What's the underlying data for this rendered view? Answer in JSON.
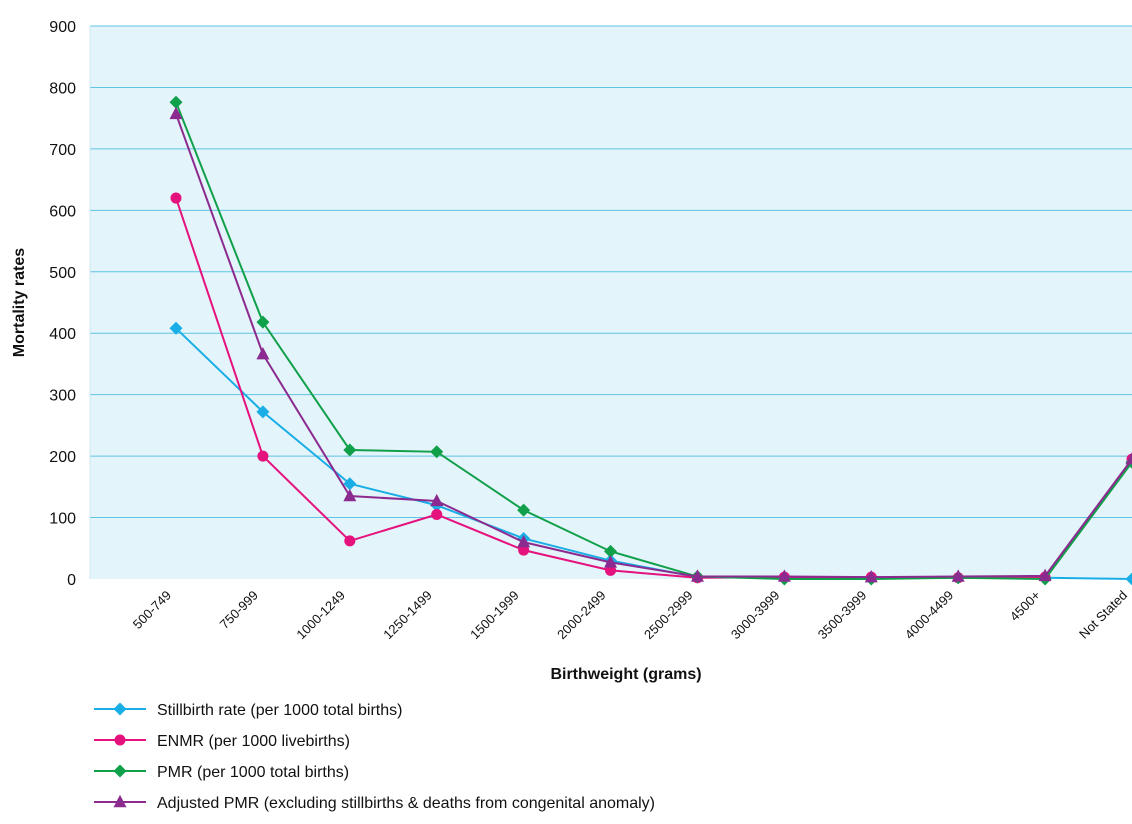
{
  "chart_data": {
    "type": "line",
    "title": "",
    "xlabel": "Birthweight (grams)",
    "ylabel": "Mortality rates",
    "ylim": [
      0,
      900
    ],
    "yticks": [
      0,
      100,
      200,
      300,
      400,
      500,
      600,
      700,
      800,
      900
    ],
    "grid": "horizontal",
    "legend": "bottom-left",
    "plot_background": "#e4f4fb",
    "grid_color": "#5fc4e4",
    "categories": [
      "500-749",
      "750-999",
      "1000-1249",
      "1250-1499",
      "1500-1999",
      "2000-2499",
      "2500-2999",
      "3000-3999",
      "3500-3999",
      "4000-4499",
      "4500+",
      "Not Stated"
    ],
    "series": [
      {
        "name": "Stillbirth rate (per 1000 total births)",
        "color": "#1aaee6",
        "marker": "diamond",
        "values": [
          408,
          272,
          155,
          120,
          66,
          30,
          3,
          2,
          1,
          2,
          2,
          0
        ]
      },
      {
        "name": "ENMR (per 1000 livebirths)",
        "color": "#e5127e",
        "marker": "circle",
        "values": [
          620,
          200,
          62,
          105,
          47,
          14,
          2,
          3,
          3,
          2,
          3,
          195
        ]
      },
      {
        "name": "PMR (per 1000 total births)",
        "color": "#11a04a",
        "marker": "diamond",
        "values": [
          776,
          418,
          210,
          207,
          112,
          45,
          4,
          0,
          0,
          2,
          0,
          190
        ]
      },
      {
        "name": "Adjusted PMR (excluding stillbirths & deaths from congenital anomaly)",
        "color": "#8b2b8f",
        "marker": "triangle",
        "values": [
          757,
          366,
          135,
          127,
          60,
          27,
          4,
          4,
          3,
          4,
          5,
          195
        ]
      }
    ]
  }
}
